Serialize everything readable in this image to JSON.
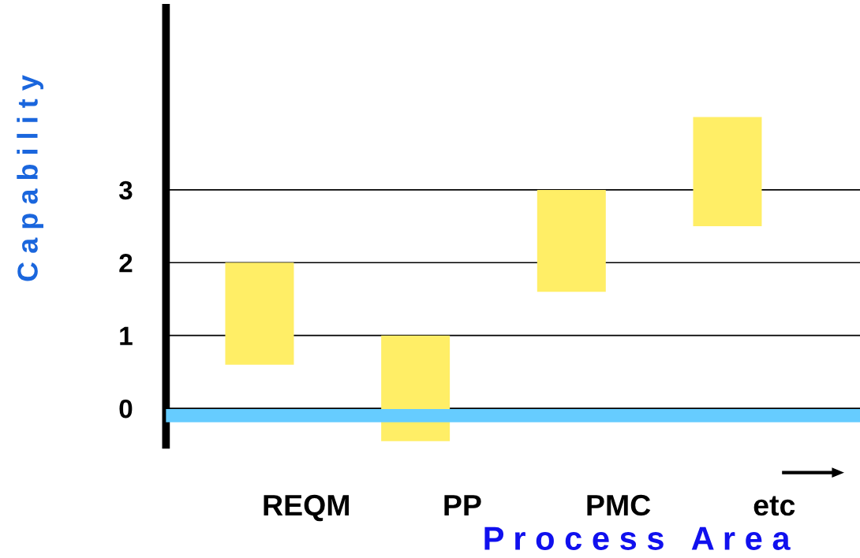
{
  "chart_data": {
    "type": "bar",
    "xlabel": "P r o c e s s   A r e a",
    "ylabel": "C a p a b i l i t y",
    "categories": [
      "REQM",
      "PP",
      "PMC",
      "etc"
    ],
    "values": [
      1.4,
      1.45,
      1.4,
      1.5
    ],
    "base": [
      0.6,
      -0.45,
      1.6,
      2.5
    ],
    "color": "#ffee66",
    "ylim": [
      -0.5,
      5.5
    ],
    "yticks": [
      0,
      1,
      2,
      3
    ],
    "grid": "y",
    "ref_lines": [
      {
        "axis": "y",
        "value": -0.1,
        "color": "#66ccff"
      }
    ]
  }
}
